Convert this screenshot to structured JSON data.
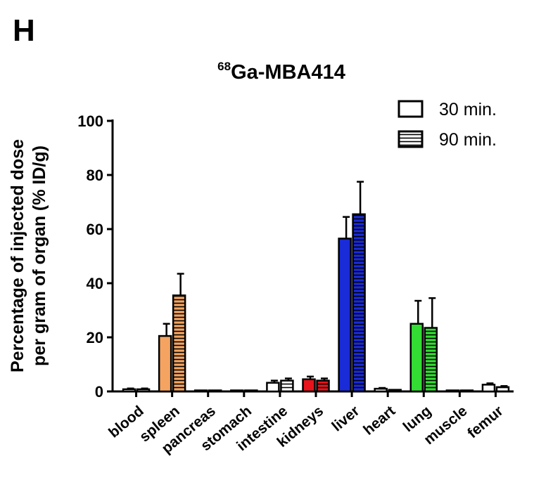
{
  "panel_letter": "H",
  "chart_data": {
    "type": "bar",
    "title_sup": "68",
    "title_main": "Ga-MBA414",
    "ylabel_lines": [
      "Percentage of injected dose",
      "per gram of organ (% ID/g)"
    ],
    "xlabel": "",
    "ylim": [
      0,
      100
    ],
    "yticks": [
      0,
      20,
      40,
      60,
      80,
      100
    ],
    "grid": false,
    "legend_placement": "top-right",
    "categories": [
      "blood",
      "spleen",
      "pancreas",
      "stomach",
      "intestine",
      "kidneys",
      "liver",
      "heart",
      "lung",
      "muscle",
      "femur"
    ],
    "category_colors": [
      "#ffffff",
      "#f4a460",
      "#ffffff",
      "#ffffff",
      "#ffffff",
      "#e8141c",
      "#1a2bd8",
      "#ffffff",
      "#33dd33",
      "#ffffff",
      "#ffffff"
    ],
    "series": [
      {
        "name": "30 min.",
        "pattern": "solid",
        "values": [
          0.8,
          20.5,
          0.3,
          0.2,
          3.2,
          4.5,
          56.5,
          1.0,
          25.0,
          0.2,
          2.5
        ],
        "errors": [
          0.3,
          4.5,
          0.1,
          0.1,
          0.8,
          1.0,
          8.0,
          0.3,
          8.5,
          0.1,
          0.5
        ]
      },
      {
        "name": "90 min.",
        "pattern": "striped",
        "values": [
          0.8,
          35.5,
          0.2,
          0.2,
          4.0,
          4.0,
          65.5,
          0.6,
          23.5,
          0.1,
          1.6
        ],
        "errors": [
          0.3,
          8.0,
          0.1,
          0.1,
          0.8,
          0.8,
          12.0,
          0.2,
          11.0,
          0.1,
          0.4
        ]
      }
    ]
  }
}
